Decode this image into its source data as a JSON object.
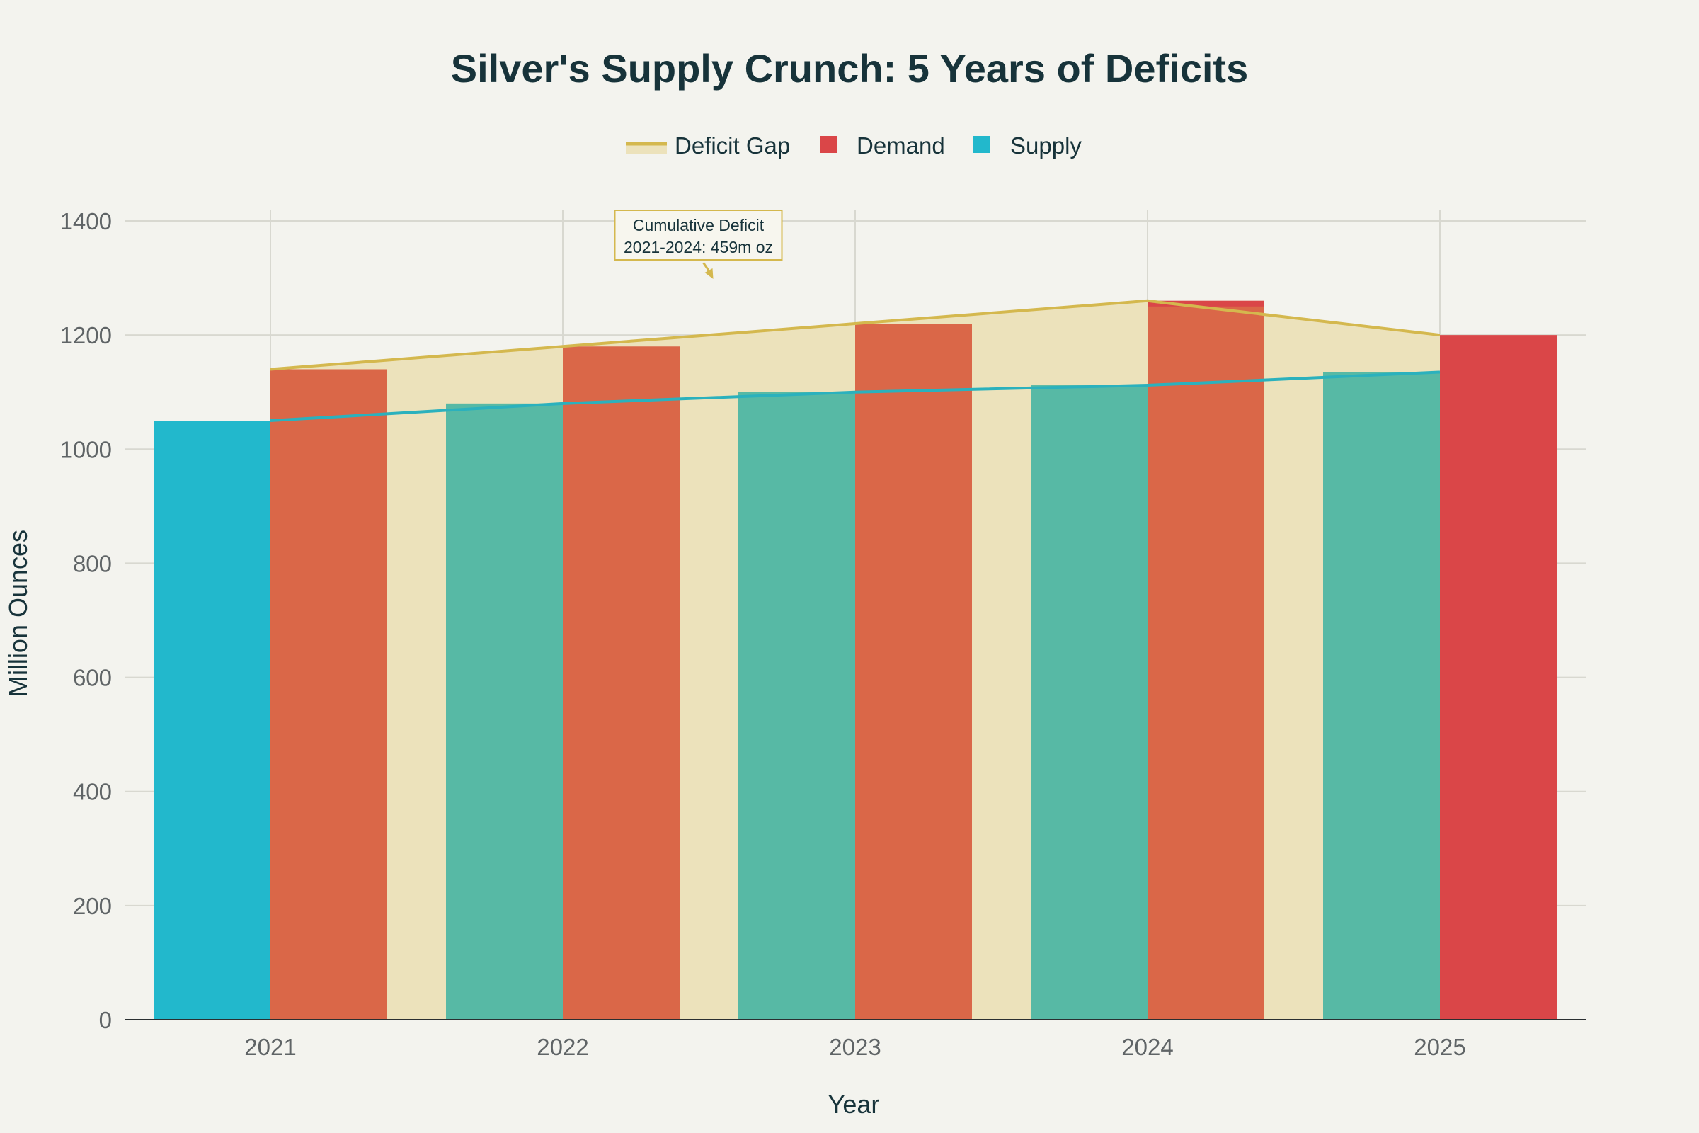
{
  "chart_data": {
    "type": "bar",
    "title": "Silver's Supply Crunch: 5 Years of Deficits",
    "xlabel": "Year",
    "ylabel": "Million Ounces",
    "categories": [
      "2021",
      "2022",
      "2023",
      "2024",
      "2025"
    ],
    "ylim": [
      0,
      1400
    ],
    "yticks": [
      0,
      200,
      400,
      600,
      800,
      1000,
      1200,
      1400
    ],
    "grid": true,
    "legend_position": "top-center",
    "series": [
      {
        "name": "Deficit Gap",
        "kind": "area",
        "color": "#d4b84e",
        "fill": "#ece2bb",
        "values": [
          1140,
          1180,
          1220,
          1260,
          1200
        ]
      },
      {
        "name": "Demand",
        "kind": "bar",
        "color": "#da4648",
        "values": [
          1140,
          1180,
          1220,
          1260,
          1200
        ]
      },
      {
        "name": "Supply",
        "kind": "bar",
        "color": "#22b8cc",
        "values": [
          1050,
          1080,
          1100,
          1112,
          1135
        ]
      }
    ],
    "annotation": {
      "lines": [
        "Cumulative Deficit",
        "2021-2024: 459m oz"
      ],
      "x": 2022.5,
      "y": 1300
    },
    "colors": {
      "background": "#f3f3ee",
      "title": "#17333a",
      "axis_text": "#5f6466",
      "grid": "#d8d8d0",
      "gap_fill": "#ece2bb",
      "gap_line": "#d4b84e",
      "demand_bar": "#da6748",
      "demand_bar_last": "#da4648",
      "supply_bar": "#57b9a5",
      "supply_bar_first": "#22b8cc",
      "supply_line": "#2bb1bd"
    }
  }
}
